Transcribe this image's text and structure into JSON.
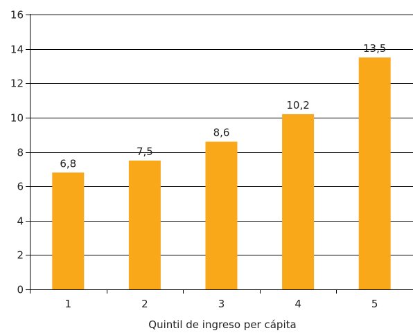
{
  "chart_data": {
    "type": "bar",
    "categories": [
      "1",
      "2",
      "3",
      "4",
      "5"
    ],
    "values": [
      6.8,
      7.5,
      8.6,
      10.2,
      13.5
    ],
    "data_labels": [
      "6,8",
      "7,5",
      "8,6",
      "10,2",
      "13,5"
    ],
    "xlabel": "Quintil de ingreso per cápita",
    "ylabel": "",
    "title": "",
    "ylim": [
      0,
      16
    ],
    "yticks": [
      "0",
      "2",
      "4",
      "6",
      "8",
      "10",
      "12",
      "14",
      "16"
    ],
    "grid": true,
    "legend": "none",
    "colors": {
      "bar": "#F9A81A",
      "grid": "#000000",
      "axis": "#000000"
    }
  }
}
